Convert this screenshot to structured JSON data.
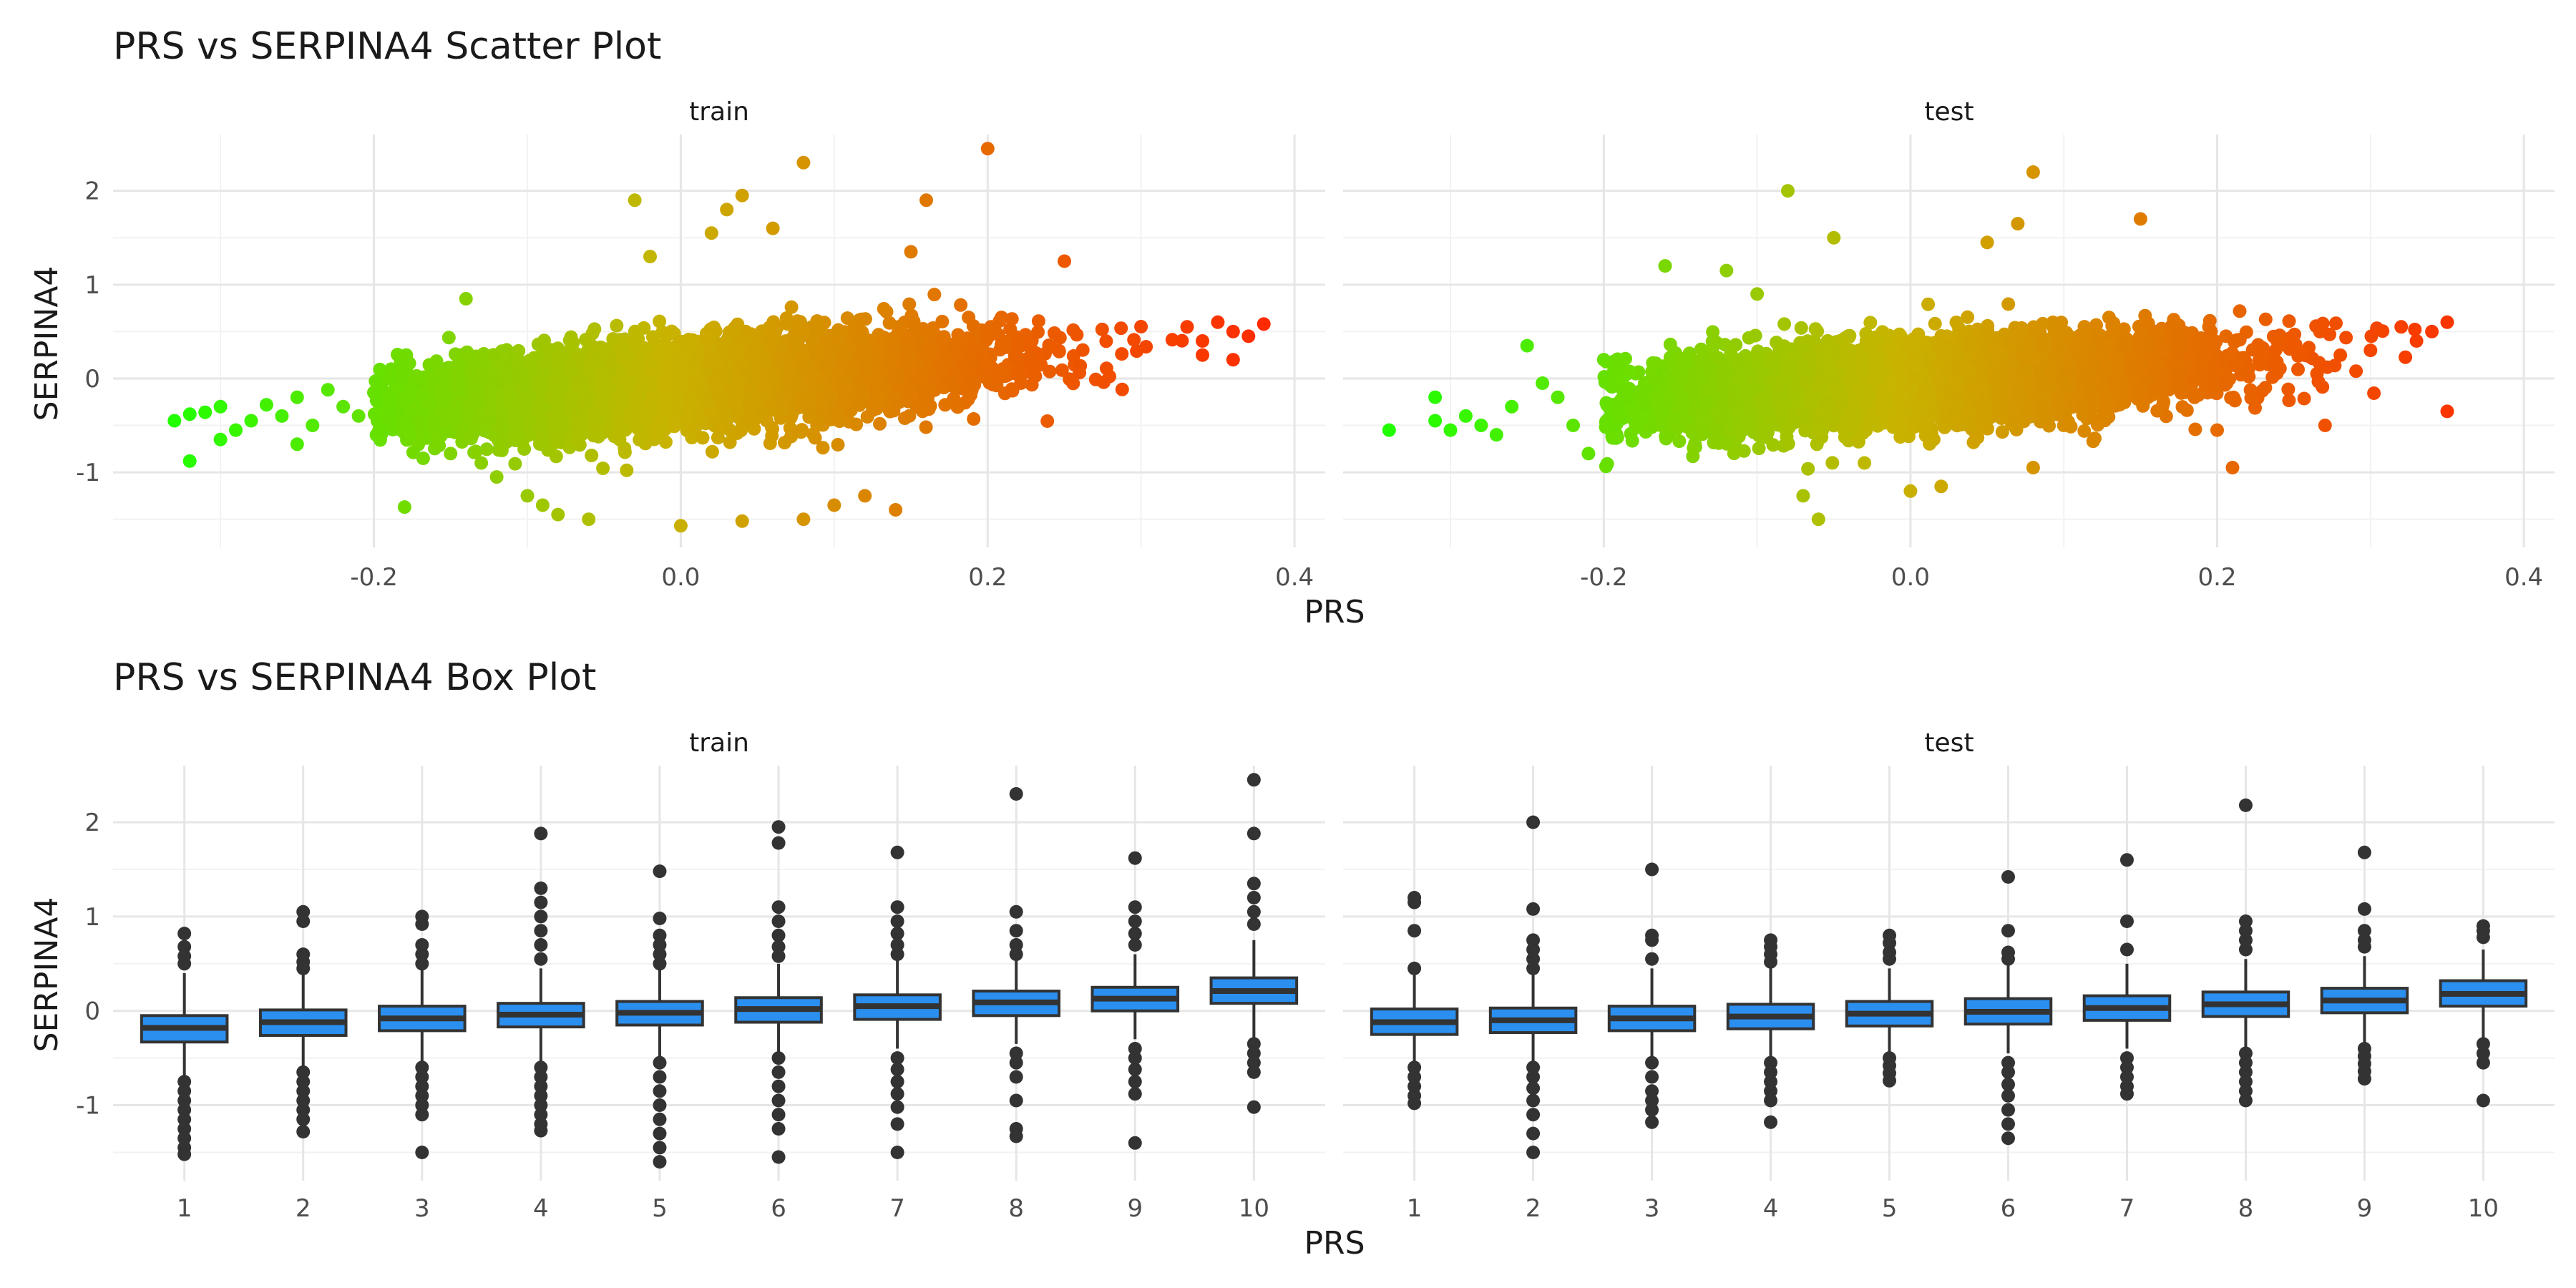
{
  "chart_data": [
    {
      "type": "scatter",
      "title": "PRS vs SERPINA4 Scatter Plot",
      "xlabel": "PRS",
      "ylabel": "SERPINA4",
      "xlim": [
        -0.37,
        0.42
      ],
      "ylim": [
        -1.8,
        2.6
      ],
      "xticks": [
        "-0.2",
        "0.0",
        "0.2",
        "0.4"
      ],
      "yticks": [
        "-1",
        "0",
        "1",
        "2"
      ],
      "color_gradient": {
        "low": "#22ff00",
        "mid": "#c8b400",
        "high": "#ff2a00",
        "mapped_to": "PRS"
      },
      "facets": [
        {
          "label": "train",
          "trend": {
            "slope": 1.15,
            "intercept": -0.05,
            "x_mean": 0.0,
            "x_sd": 0.1,
            "y_sd": 0.22
          },
          "points": [
            [
              -0.33,
              -0.45
            ],
            [
              -0.32,
              -0.38
            ],
            [
              -0.31,
              -0.36
            ],
            [
              -0.3,
              -0.3
            ],
            [
              -0.32,
              -0.88
            ],
            [
              -0.3,
              -0.65
            ],
            [
              -0.29,
              -0.55
            ],
            [
              -0.28,
              -0.45
            ],
            [
              -0.27,
              -0.28
            ],
            [
              -0.26,
              -0.4
            ],
            [
              -0.25,
              -0.2
            ],
            [
              -0.24,
              -0.5
            ],
            [
              -0.23,
              -0.12
            ],
            [
              -0.25,
              -0.7
            ],
            [
              -0.22,
              -0.3
            ],
            [
              -0.21,
              -0.4
            ],
            [
              -0.2,
              -0.15
            ],
            [
              -0.19,
              -0.25
            ],
            [
              -0.18,
              -1.37
            ],
            [
              -0.17,
              -0.5
            ],
            [
              -0.15,
              -0.8
            ],
            [
              -0.13,
              -0.9
            ],
            [
              -0.14,
              0.85
            ],
            [
              -0.12,
              -1.05
            ],
            [
              -0.1,
              -1.25
            ],
            [
              -0.09,
              -1.35
            ],
            [
              -0.08,
              -1.45
            ],
            [
              -0.06,
              -1.5
            ],
            [
              -0.03,
              1.9
            ],
            [
              -0.02,
              1.3
            ],
            [
              0.0,
              -1.57
            ],
            [
              0.02,
              1.55
            ],
            [
              0.03,
              1.8
            ],
            [
              0.04,
              1.95
            ],
            [
              0.04,
              -1.52
            ],
            [
              0.06,
              1.6
            ],
            [
              0.08,
              -1.5
            ],
            [
              0.08,
              2.3
            ],
            [
              0.1,
              -1.35
            ],
            [
              0.12,
              -1.25
            ],
            [
              0.14,
              -1.4
            ],
            [
              0.15,
              1.35
            ],
            [
              0.16,
              1.9
            ],
            [
              0.2,
              2.45
            ],
            [
              0.25,
              1.25
            ],
            [
              0.33,
              0.55
            ],
            [
              0.34,
              0.4
            ],
            [
              0.35,
              0.6
            ],
            [
              0.36,
              0.5
            ],
            [
              0.37,
              0.45
            ],
            [
              0.38,
              0.58
            ],
            [
              0.36,
              0.2
            ],
            [
              0.34,
              0.25
            ]
          ]
        },
        {
          "label": "test",
          "trend": {
            "slope": 1.05,
            "intercept": -0.05,
            "x_mean": 0.0,
            "x_sd": 0.1,
            "y_sd": 0.22
          },
          "points": [
            [
              -0.34,
              -0.55
            ],
            [
              -0.31,
              -0.2
            ],
            [
              -0.31,
              -0.45
            ],
            [
              -0.3,
              -0.55
            ],
            [
              -0.29,
              -0.4
            ],
            [
              -0.28,
              -0.5
            ],
            [
              -0.27,
              -0.6
            ],
            [
              -0.26,
              -0.3
            ],
            [
              -0.25,
              0.35
            ],
            [
              -0.24,
              -0.05
            ],
            [
              -0.23,
              -0.2
            ],
            [
              -0.22,
              -0.5
            ],
            [
              -0.21,
              -0.8
            ],
            [
              -0.2,
              0.2
            ],
            [
              -0.19,
              0.1
            ],
            [
              -0.16,
              1.2
            ],
            [
              -0.12,
              1.15
            ],
            [
              -0.1,
              0.9
            ],
            [
              -0.08,
              2.0
            ],
            [
              -0.05,
              1.5
            ],
            [
              -0.06,
              -1.5
            ],
            [
              -0.07,
              -1.25
            ],
            [
              -0.03,
              -0.9
            ],
            [
              0.0,
              -1.2
            ],
            [
              0.02,
              -1.15
            ],
            [
              0.05,
              1.45
            ],
            [
              0.07,
              1.65
            ],
            [
              0.08,
              2.2
            ],
            [
              0.08,
              -0.95
            ],
            [
              0.15,
              1.7
            ],
            [
              0.1,
              -0.5
            ],
            [
              0.2,
              -0.55
            ],
            [
              0.21,
              -0.95
            ],
            [
              0.34,
              0.5
            ],
            [
              0.35,
              0.6
            ],
            [
              0.35,
              -0.35
            ],
            [
              0.33,
              0.4
            ],
            [
              0.32,
              0.55
            ],
            [
              0.3,
              0.3
            ]
          ]
        }
      ]
    },
    {
      "type": "box",
      "title": "PRS vs SERPINA4 Box Plot",
      "xlabel": "PRS",
      "ylabel": "SERPINA4",
      "categories": [
        "1",
        "2",
        "3",
        "4",
        "5",
        "6",
        "7",
        "8",
        "9",
        "10"
      ],
      "ylim": [
        -1.8,
        2.6
      ],
      "yticks": [
        "-1",
        "0",
        "1",
        "2"
      ],
      "fill": "#2b8ff0",
      "facets": [
        {
          "label": "train",
          "boxes": [
            {
              "lo": -0.7,
              "q1": -0.33,
              "median": -0.18,
              "q3": -0.05,
              "hi": 0.4,
              "outliers": [
                0.82,
                0.68,
                0.58,
                0.5,
                -0.75,
                -0.85,
                -0.95,
                -1.05,
                -1.15,
                -1.25,
                -1.35,
                -1.45,
                -1.52
              ]
            },
            {
              "lo": -0.6,
              "q1": -0.26,
              "median": -0.12,
              "q3": 0.01,
              "hi": 0.4,
              "outliers": [
                1.05,
                0.95,
                0.6,
                0.52,
                0.45,
                -0.65,
                -0.75,
                -0.85,
                -0.95,
                -1.05,
                -1.15,
                -1.28
              ]
            },
            {
              "lo": -0.55,
              "q1": -0.21,
              "median": -0.08,
              "q3": 0.05,
              "hi": 0.45,
              "outliers": [
                1.0,
                0.92,
                0.7,
                0.6,
                0.5,
                -0.6,
                -0.7,
                -0.8,
                -0.9,
                -1.0,
                -1.1,
                -1.5
              ]
            },
            {
              "lo": -0.55,
              "q1": -0.17,
              "median": -0.04,
              "q3": 0.08,
              "hi": 0.45,
              "outliers": [
                1.88,
                1.3,
                1.15,
                1.0,
                0.85,
                0.7,
                0.55,
                -0.6,
                -0.7,
                -0.8,
                -0.9,
                -1.0,
                -1.1,
                -1.2,
                -1.27
              ]
            },
            {
              "lo": -0.5,
              "q1": -0.15,
              "median": -0.02,
              "q3": 0.1,
              "hi": 0.45,
              "outliers": [
                1.48,
                0.98,
                0.8,
                0.7,
                0.6,
                0.5,
                -0.55,
                -0.7,
                -0.85,
                -1.0,
                -1.15,
                -1.3,
                -1.45,
                -1.6
              ]
            },
            {
              "lo": -0.45,
              "q1": -0.12,
              "median": 0.02,
              "q3": 0.14,
              "hi": 0.5,
              "outliers": [
                1.95,
                1.78,
                1.1,
                0.95,
                0.8,
                0.68,
                0.58,
                -0.5,
                -0.65,
                -0.8,
                -0.95,
                -1.1,
                -1.25,
                -1.55
              ]
            },
            {
              "lo": -0.4,
              "q1": -0.09,
              "median": 0.05,
              "q3": 0.17,
              "hi": 0.55,
              "outliers": [
                1.68,
                1.1,
                0.95,
                0.82,
                0.7,
                0.6,
                -0.5,
                -0.62,
                -0.75,
                -0.88,
                -1.02,
                -1.2,
                -1.5
              ]
            },
            {
              "lo": -0.35,
              "q1": -0.05,
              "median": 0.09,
              "q3": 0.21,
              "hi": 0.55,
              "outliers": [
                2.3,
                1.05,
                0.85,
                0.7,
                0.6,
                -0.45,
                -0.55,
                -0.7,
                -0.95,
                -1.25,
                -1.33
              ]
            },
            {
              "lo": -0.3,
              "q1": 0.0,
              "median": 0.13,
              "q3": 0.25,
              "hi": 0.6,
              "outliers": [
                1.62,
                1.1,
                0.95,
                0.82,
                0.7,
                -0.4,
                -0.5,
                -0.62,
                -0.75,
                -0.88,
                -1.4
              ]
            },
            {
              "lo": -0.3,
              "q1": 0.08,
              "median": 0.21,
              "q3": 0.35,
              "hi": 0.75,
              "outliers": [
                2.45,
                1.88,
                1.35,
                1.2,
                1.05,
                0.92,
                -0.35,
                -0.45,
                -0.55,
                -0.65,
                -1.02
              ]
            }
          ]
        },
        {
          "label": "test",
          "boxes": [
            {
              "lo": -0.55,
              "q1": -0.25,
              "median": -0.12,
              "q3": 0.02,
              "hi": 0.4,
              "outliers": [
                1.2,
                1.15,
                0.85,
                0.45,
                -0.6,
                -0.7,
                -0.8,
                -0.9,
                -0.98
              ]
            },
            {
              "lo": -0.55,
              "q1": -0.23,
              "median": -0.1,
              "q3": 0.03,
              "hi": 0.42,
              "outliers": [
                2.0,
                1.08,
                0.75,
                0.65,
                0.55,
                0.45,
                -0.6,
                -0.7,
                -0.82,
                -0.95,
                -1.1,
                -1.3,
                -1.5
              ]
            },
            {
              "lo": -0.5,
              "q1": -0.21,
              "median": -0.08,
              "q3": 0.05,
              "hi": 0.45,
              "outliers": [
                1.5,
                0.8,
                0.75,
                0.55,
                -0.55,
                -0.7,
                -0.85,
                -0.95,
                -1.05,
                -1.18
              ]
            },
            {
              "lo": -0.5,
              "q1": -0.19,
              "median": -0.06,
              "q3": 0.07,
              "hi": 0.45,
              "outliers": [
                0.75,
                0.68,
                0.6,
                0.52,
                -0.55,
                -0.65,
                -0.75,
                -0.85,
                -0.95,
                -1.18
              ]
            },
            {
              "lo": -0.45,
              "q1": -0.16,
              "median": -0.03,
              "q3": 0.1,
              "hi": 0.45,
              "outliers": [
                0.8,
                0.72,
                0.62,
                0.55,
                -0.5,
                -0.58,
                -0.66,
                -0.74
              ]
            },
            {
              "lo": -0.45,
              "q1": -0.14,
              "median": -0.01,
              "q3": 0.13,
              "hi": 0.48,
              "outliers": [
                1.42,
                0.85,
                0.62,
                0.55,
                -0.55,
                -0.65,
                -0.78,
                -0.9,
                -1.05,
                -1.2,
                -1.35
              ]
            },
            {
              "lo": -0.4,
              "q1": -0.1,
              "median": 0.03,
              "q3": 0.16,
              "hi": 0.5,
              "outliers": [
                1.6,
                0.95,
                0.65,
                -0.5,
                -0.6,
                -0.7,
                -0.8,
                -0.88
              ]
            },
            {
              "lo": -0.4,
              "q1": -0.06,
              "median": 0.07,
              "q3": 0.2,
              "hi": 0.55,
              "outliers": [
                2.18,
                0.95,
                0.85,
                0.75,
                0.65,
                -0.45,
                -0.55,
                -0.65,
                -0.75,
                -0.85,
                -0.95
              ]
            },
            {
              "lo": -0.35,
              "q1": -0.02,
              "median": 0.11,
              "q3": 0.24,
              "hi": 0.58,
              "outliers": [
                1.68,
                1.08,
                0.85,
                0.75,
                0.68,
                -0.4,
                -0.48,
                -0.56,
                -0.64,
                -0.72
              ]
            },
            {
              "lo": -0.3,
              "q1": 0.05,
              "median": 0.18,
              "q3": 0.32,
              "hi": 0.65,
              "outliers": [
                0.9,
                0.85,
                0.78,
                -0.35,
                -0.45,
                -0.55,
                -0.95
              ]
            }
          ]
        }
      ]
    }
  ]
}
